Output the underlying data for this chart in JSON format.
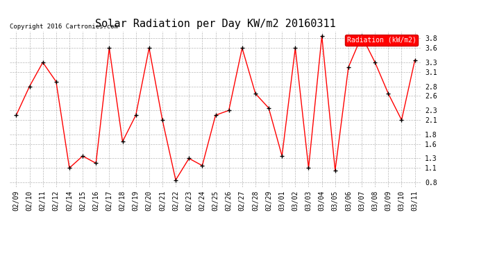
{
  "title": "Solar Radiation per Day KW/m2 20160311",
  "copyright_text": "Copyright 2016 Cartronics.com",
  "legend_label": "Radiation (kW/m2)",
  "dates": [
    "02/09",
    "02/10",
    "02/11",
    "02/12",
    "02/14",
    "02/15",
    "02/16",
    "02/17",
    "02/18",
    "02/19",
    "02/20",
    "02/21",
    "02/22",
    "02/23",
    "02/24",
    "02/25",
    "02/26",
    "02/27",
    "02/28",
    "02/29",
    "03/01",
    "03/02",
    "03/03",
    "03/04",
    "03/05",
    "03/06",
    "03/07",
    "03/08",
    "03/09",
    "03/10",
    "03/11"
  ],
  "values": [
    2.2,
    2.8,
    3.3,
    2.9,
    1.1,
    1.35,
    1.2,
    3.6,
    1.65,
    2.2,
    3.6,
    2.1,
    0.85,
    1.3,
    1.15,
    2.2,
    2.3,
    3.6,
    2.65,
    2.35,
    1.35,
    3.6,
    1.1,
    3.85,
    1.05,
    3.2,
    3.85,
    3.3,
    2.65,
    2.1,
    3.35
  ],
  "line_color": "#ff0000",
  "marker_color": "#000000",
  "bg_color": "#ffffff",
  "grid_color": "#999999",
  "ylim": [
    0.7,
    3.95
  ],
  "yticks": [
    0.8,
    1.1,
    1.3,
    1.6,
    1.8,
    2.1,
    2.3,
    2.6,
    2.8,
    3.1,
    3.3,
    3.6,
    3.8
  ],
  "title_fontsize": 11,
  "tick_fontsize": 7,
  "legend_bg": "#ff0000",
  "legend_text_color": "#ffffff"
}
